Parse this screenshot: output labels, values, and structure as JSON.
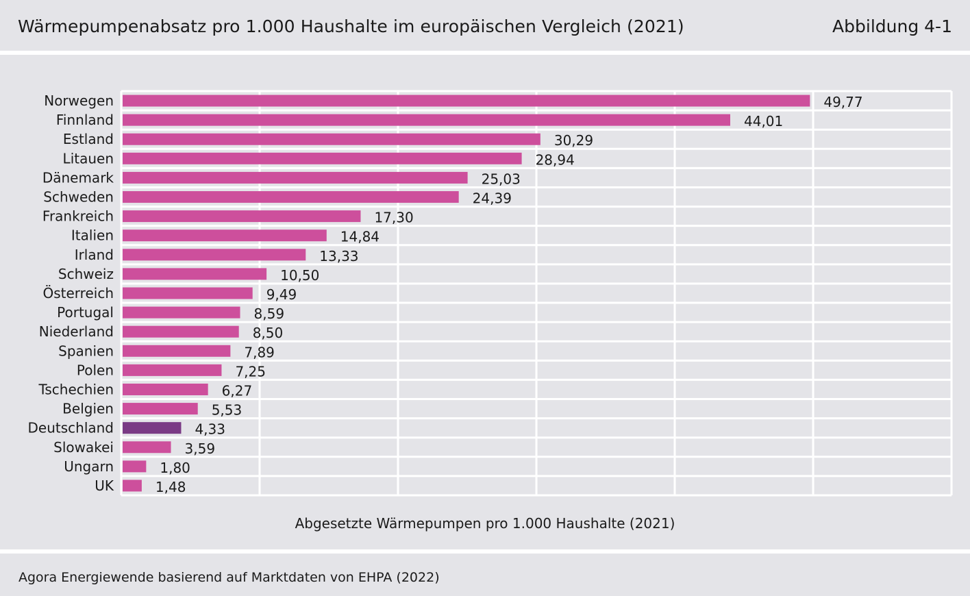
{
  "header": {
    "title": "Wärmepumpenabsatz pro 1.000 Haushalte im europäischen Vergleich (2021)",
    "figure_number": "Abbildung 4-1"
  },
  "footer": {
    "source": "Agora Energiewende basierend auf Marktdaten von EHPA (2022)"
  },
  "colors": {
    "background": "#e4e4e8",
    "bar": "#cd4f9c",
    "highlight": "#7a3a85",
    "grid": "#ffffff"
  },
  "chart_data": {
    "type": "bar",
    "orientation": "horizontal",
    "title": "Wärmepumpenabsatz pro 1.000 Haushalte im europäischen Vergleich (2021)",
    "xlabel": "Abgesetzte Wärmepumpen pro 1.000 Haushalte (2021)",
    "ylabel": "",
    "xlim": [
      0,
      60
    ],
    "grid": true,
    "tick_labels_shown": false,
    "highlight_category": "Deutschland",
    "categories": [
      "Norwegen",
      "Finnland",
      "Estland",
      "Litauen",
      "Dänemark",
      "Schweden",
      "Frankreich",
      "Italien",
      "Irland",
      "Schweiz",
      "Österreich",
      "Portugal",
      "Niederland",
      "Spanien",
      "Polen",
      "Tschechien",
      "Belgien",
      "Deutschland",
      "Slowakei",
      "Ungarn",
      "UK"
    ],
    "values": [
      49.77,
      44.01,
      30.29,
      28.94,
      25.03,
      24.39,
      17.3,
      14.84,
      13.33,
      10.5,
      9.49,
      8.59,
      8.5,
      7.89,
      7.25,
      6.27,
      5.53,
      4.33,
      3.59,
      1.8,
      1.48
    ],
    "value_labels": [
      "49,77",
      "44,01",
      "30,29",
      "28,94",
      "25,03",
      "24,39",
      "17,30",
      "14,84",
      "13,33",
      "10,50",
      "9,49",
      "8,59",
      "8,50",
      "7,89",
      "7,25",
      "6,27",
      "5,53",
      "4,33",
      "3,59",
      "1,80",
      "1,48"
    ]
  }
}
